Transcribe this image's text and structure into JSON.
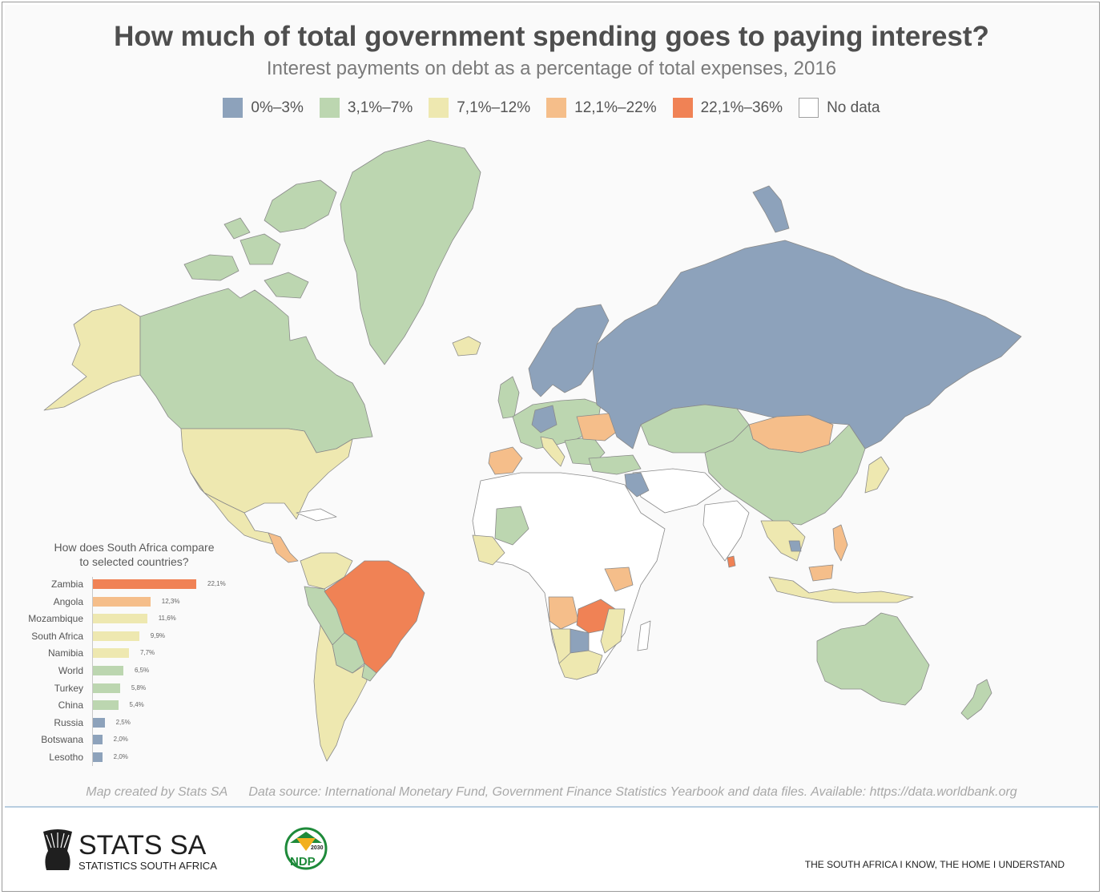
{
  "header": {
    "title": "How much of total government spending goes to paying interest?",
    "subtitle": "Interest payments on debt as a percentage of total expenses, 2016"
  },
  "legend": [
    {
      "label": "0%–3%",
      "color": "#8da2bb"
    },
    {
      "label": "3,1%–7%",
      "color": "#bcd6b0"
    },
    {
      "label": "7,1%–12%",
      "color": "#eee8b0"
    },
    {
      "label": "12,1%–22%",
      "color": "#f5be8a"
    },
    {
      "label": "22,1%–36%",
      "color": "#f08255"
    },
    {
      "label": "No data",
      "color": "#ffffff"
    }
  ],
  "map_regions": [
    {
      "name": "Russia",
      "class": "0%–3%"
    },
    {
      "name": "Canada",
      "class": "3,1%–7%"
    },
    {
      "name": "Greenland",
      "class": "3,1%–7%"
    },
    {
      "name": "United States",
      "class": "7,1%–12%"
    },
    {
      "name": "Alaska",
      "class": "7,1%–12%"
    },
    {
      "name": "Brazil",
      "class": "22,1%–36%"
    },
    {
      "name": "China",
      "class": "3,1%–7%"
    },
    {
      "name": "Mongolia",
      "class": "12,1%–22%"
    },
    {
      "name": "Kazakhstan",
      "class": "3,1%–7%"
    },
    {
      "name": "Australia",
      "class": "3,1%–7%"
    },
    {
      "name": "Angola",
      "class": "12,1%–22%"
    },
    {
      "name": "Zambia",
      "class": "22,1%–36%"
    },
    {
      "name": "South Africa",
      "class": "7,1%–12%"
    },
    {
      "name": "Botswana",
      "class": "0%–3%"
    },
    {
      "name": "Argentina",
      "class": "7,1%–12%"
    },
    {
      "name": "Spain",
      "class": "12,1%–22%"
    }
  ],
  "inset": {
    "title_line1": "How does South Africa compare",
    "title_line2": "to selected countries?"
  },
  "chart_data": {
    "type": "bar",
    "orientation": "horizontal",
    "title": "How does South Africa compare to selected countries?",
    "categories": [
      "Zambia",
      "Angola",
      "Mozambique",
      "South Africa",
      "Namibia",
      "World",
      "Turkey",
      "China",
      "Russia",
      "Botswana",
      "Lesotho"
    ],
    "values": [
      22.1,
      12.3,
      11.6,
      9.9,
      7.7,
      6.5,
      5.8,
      5.4,
      2.5,
      2.0,
      2.0
    ],
    "value_labels": [
      "22,1%",
      "12,3%",
      "11,6%",
      "9,9%",
      "7,7%",
      "6,5%",
      "5,8%",
      "5,4%",
      "2,5%",
      "2,0%",
      "2,0%"
    ],
    "colors": [
      "#f08255",
      "#f5be8a",
      "#eee8b0",
      "#eee8b0",
      "#eee8b0",
      "#bcd6b0",
      "#bcd6b0",
      "#bcd6b0",
      "#8da2bb",
      "#8da2bb",
      "#8da2bb"
    ],
    "xlim": [
      0,
      36
    ]
  },
  "footer": {
    "credit": "Map created by Stats SA",
    "source": "Data source: International Monetary Fund, Government Finance Statistics Yearbook and data files. Available: https://data.worldbank.org",
    "brand": "STATS SA",
    "brand_sub": "STATISTICS SOUTH AFRICA",
    "ndp_year": "2030",
    "ndp_label": "NDP",
    "slogan": "THE SOUTH AFRICA I KNOW, THE HOME I UNDERSTAND"
  }
}
